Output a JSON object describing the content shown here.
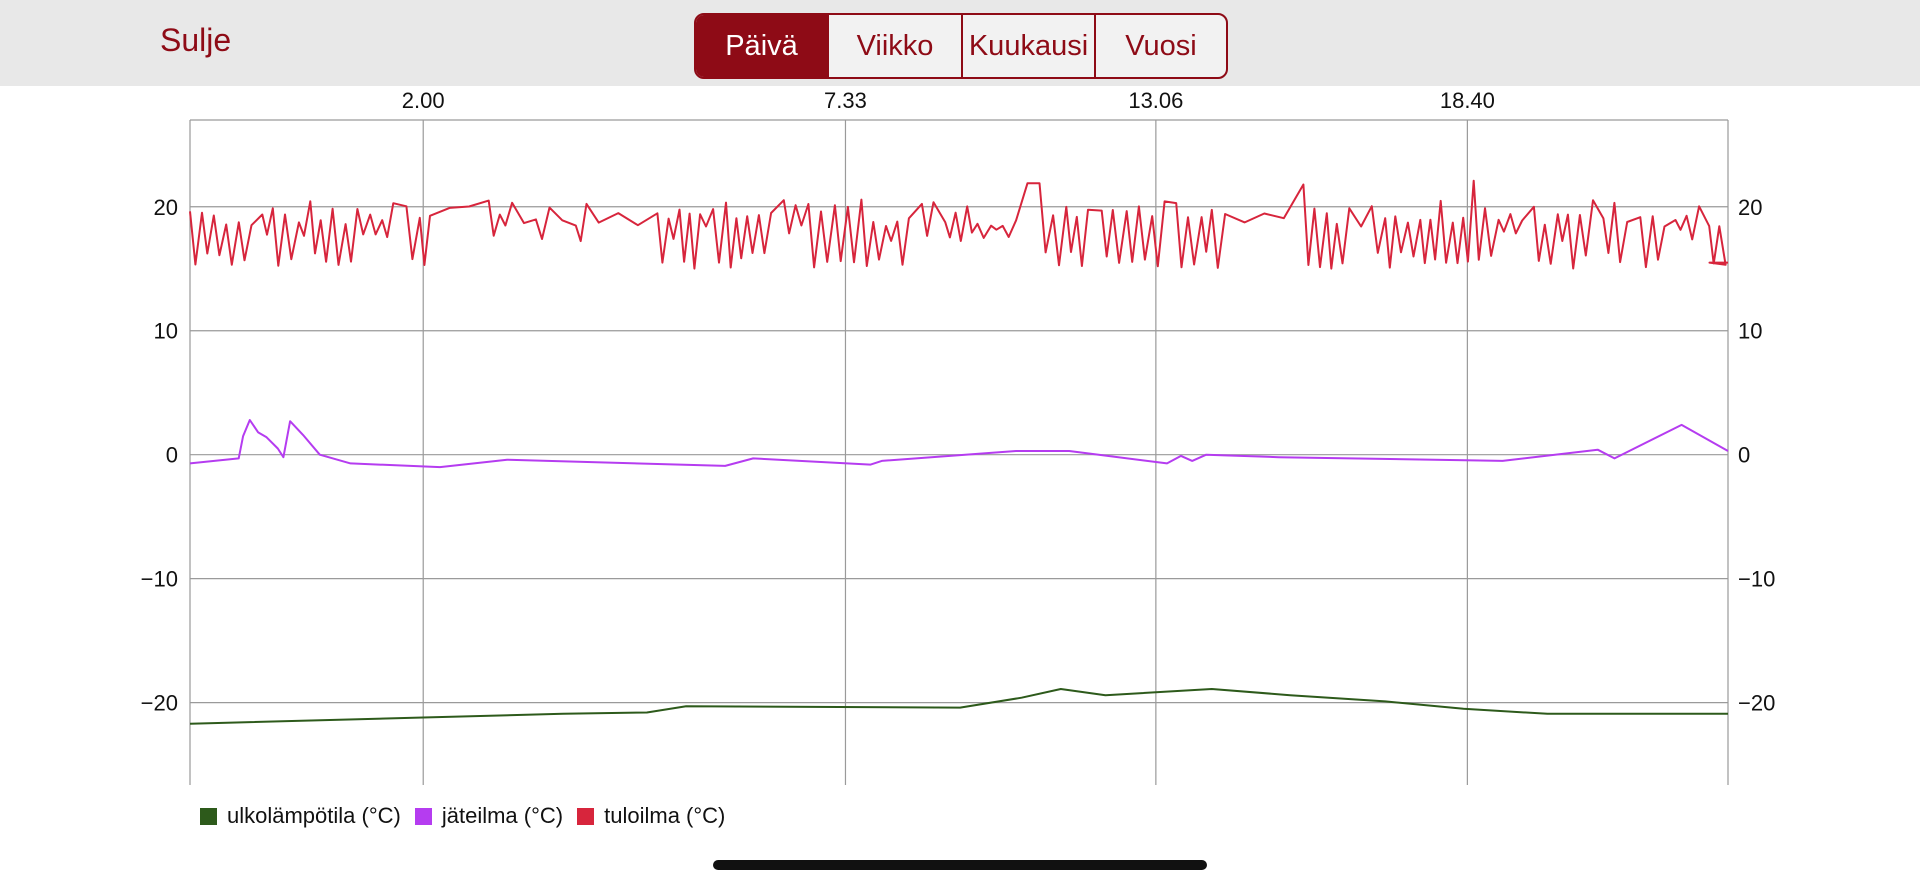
{
  "header": {
    "close_label": "Sulje",
    "segments": [
      "Päivä",
      "Viikko",
      "Kuukausi",
      "Vuosi"
    ],
    "active_segment": 0,
    "accent_color": "#8e0b16"
  },
  "chart_data": {
    "type": "line",
    "title": "",
    "xlabel": "",
    "ylabel": "",
    "x_tick_labels": [
      "2.00",
      "7.33",
      "13.06",
      "18.40"
    ],
    "x_range_hours": [
      -4.17,
      23.33
    ],
    "x_tick_hours": [
      0.0,
      7.55,
      13.1,
      18.67
    ],
    "ylim": [
      -26,
      27
    ],
    "y_ticks": [
      -20,
      -10,
      0,
      10,
      20
    ],
    "y_tick_labels": [
      "−20",
      "−10",
      "0",
      "10",
      "20"
    ],
    "grid": true,
    "legend_position": "bottom-left",
    "series": [
      {
        "name": "ulkolämpötila (°C)",
        "color": "#2d5a1b",
        "x": [
          -4.17,
          0.0,
          2.5,
          4.0,
          4.7,
          9.6,
          10.7,
          11.4,
          12.2,
          14.1,
          15.5,
          17.2,
          18.6,
          20.1,
          23.33
        ],
        "y": [
          -21.7,
          -21.2,
          -20.9,
          -20.8,
          -20.3,
          -20.4,
          -19.6,
          -18.9,
          -19.4,
          -18.9,
          -19.4,
          -19.9,
          -20.5,
          -20.9,
          -20.9
        ]
      },
      {
        "name": "jäteilma (°C)",
        "color": "#b53cf0",
        "x": [
          -4.17,
          -3.3,
          -3.22,
          -3.1,
          -2.95,
          -2.8,
          -2.6,
          -2.5,
          -2.38,
          -2.15,
          -1.85,
          -1.3,
          0.3,
          1.5,
          5.4,
          5.9,
          8.0,
          8.2,
          10.6,
          10.9,
          11.55,
          13.3,
          13.55,
          13.75,
          14.0,
          15.3,
          19.3,
          21.0,
          21.3,
          22.5,
          23.33
        ],
        "y": [
          -0.7,
          -0.3,
          1.5,
          2.8,
          1.8,
          1.4,
          0.5,
          -0.2,
          2.7,
          1.6,
          0.0,
          -0.7,
          -1.0,
          -0.4,
          -0.9,
          -0.3,
          -0.8,
          -0.5,
          0.3,
          0.3,
          0.3,
          -0.7,
          -0.1,
          -0.5,
          0.0,
          -0.2,
          -0.5,
          0.4,
          -0.3,
          2.4,
          0.3
        ]
      },
      {
        "name": "tuloilma (°C)",
        "color": "#d7253c",
        "x": [],
        "y": []
      }
    ]
  },
  "legend": {
    "items": [
      {
        "label": "ulkolämpötila (°C)",
        "color": "#2d5a1b"
      },
      {
        "label": "jäteilma (°C)",
        "color": "#b53cf0"
      },
      {
        "label": "tuloilma (°C)",
        "color": "#d7253c"
      }
    ]
  }
}
